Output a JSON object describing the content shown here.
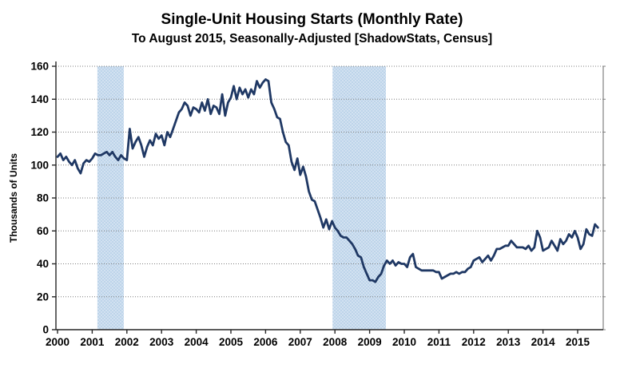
{
  "title": "Single-Unit Housing Starts (Monthly Rate)",
  "subtitle": "To August 2015, Seasonally-Adjusted [ShadowStats, Census]",
  "chart_data": {
    "type": "line",
    "title": "Single-Unit Housing Starts (Monthly Rate)",
    "subtitle": "To August 2015, Seasonally-Adjusted [ShadowStats, Census]",
    "ylabel": "Thousands of Units",
    "xlabel": "",
    "ylim": [
      0,
      160
    ],
    "yticks": [
      0,
      20,
      40,
      60,
      80,
      100,
      120,
      140,
      160
    ],
    "xticks": [
      2000,
      2001,
      2002,
      2003,
      2004,
      2005,
      2006,
      2007,
      2008,
      2009,
      2010,
      2011,
      2012,
      2013,
      2014,
      2015
    ],
    "x_start_year": 2000,
    "x_end": 2015.583,
    "frequency": "monthly",
    "grid": true,
    "legend_position": "none",
    "line_color": "#1F3864",
    "band_color": "#BDD4EA",
    "grid_color": "#7F7F7F",
    "axis_color": "#262626",
    "recession_bands": [
      {
        "start": 2001.15,
        "end": 2001.91
      },
      {
        "start": 2007.93,
        "end": 2009.47
      }
    ],
    "series": [
      {
        "name": "Single-Unit Housing Starts",
        "values": [
          105,
          107,
          103,
          105,
          102,
          100,
          103,
          98,
          95,
          101,
          103,
          102,
          104,
          107,
          106,
          106,
          107,
          108,
          106,
          108,
          105,
          103,
          106,
          104,
          103,
          122,
          110,
          114,
          117,
          112,
          105,
          111,
          115,
          112,
          119,
          116,
          118,
          112,
          120,
          117,
          122,
          127,
          132,
          134,
          138,
          136,
          130,
          135,
          134,
          132,
          138,
          133,
          140,
          131,
          136,
          135,
          131,
          143,
          130,
          138,
          141,
          148,
          140,
          147,
          143,
          146,
          141,
          146,
          143,
          151,
          147,
          150,
          152,
          151,
          138,
          134,
          129,
          128,
          120,
          114,
          112,
          102,
          97,
          104,
          94,
          99,
          93,
          84,
          79,
          78,
          73,
          68,
          62,
          67,
          61,
          66,
          62,
          60,
          57,
          56,
          56,
          54,
          52,
          49,
          45,
          44,
          38,
          34,
          30,
          30,
          29,
          32,
          34,
          39,
          42,
          40,
          42,
          39,
          41,
          40,
          40,
          38,
          44,
          46,
          38,
          37,
          36,
          36,
          36,
          36,
          36,
          35,
          35,
          31,
          32,
          33,
          34,
          34,
          35,
          34,
          35,
          35,
          37,
          38,
          42,
          43,
          44,
          41,
          43,
          45,
          42,
          45,
          49,
          49,
          50,
          51,
          51,
          54,
          52,
          50,
          50,
          50,
          49,
          51,
          48,
          50,
          60,
          56,
          48,
          49,
          50,
          54,
          51,
          48,
          55,
          52,
          54,
          58,
          56,
          60,
          56,
          49,
          52,
          61,
          58,
          57,
          64,
          62
        ]
      }
    ]
  }
}
